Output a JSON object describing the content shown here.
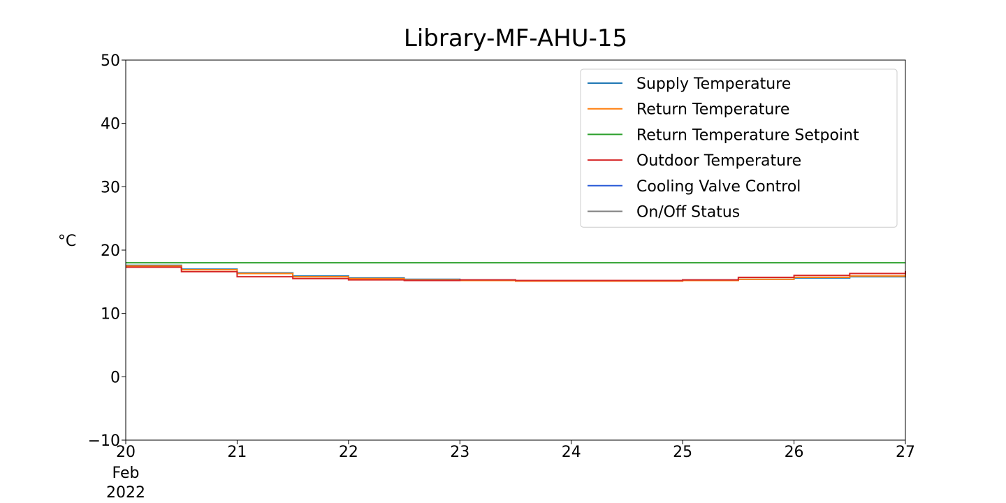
{
  "chart_data": {
    "type": "line",
    "title": "Library-MF-AHU-15",
    "xlabel": "",
    "ylabel": "°C",
    "ylim": [
      -10,
      50
    ],
    "xlim": [
      "2022-02-20",
      "2022-02-27"
    ],
    "x_ticks": [
      {
        "value": "2022-02-20",
        "label": "20"
      },
      {
        "value": "2022-02-21",
        "label": "21"
      },
      {
        "value": "2022-02-22",
        "label": "22"
      },
      {
        "value": "2022-02-23",
        "label": "23"
      },
      {
        "value": "2022-02-24",
        "label": "24"
      },
      {
        "value": "2022-02-25",
        "label": "25"
      },
      {
        "value": "2022-02-26",
        "label": "26"
      },
      {
        "value": "2022-02-27",
        "label": "27"
      }
    ],
    "x_tick_sublabels": [
      "Feb",
      "2022"
    ],
    "y_ticks": [
      50,
      40,
      30,
      20,
      10,
      0,
      -10
    ],
    "y_tick_labels": [
      "50",
      "40",
      "30",
      "20",
      "10",
      "0",
      "−10"
    ],
    "grid": false,
    "legend_position": "top-right",
    "series": [
      {
        "name": "Supply Temperature",
        "color": "#1f77b4",
        "x": [
          "2022-02-20",
          "2022-02-20T12:00",
          "2022-02-21",
          "2022-02-21T12:00",
          "2022-02-22",
          "2022-02-22T12:00",
          "2022-02-23",
          "2022-02-23T12:00",
          "2022-02-24",
          "2022-02-24T12:00",
          "2022-02-25",
          "2022-02-25T12:00",
          "2022-02-26",
          "2022-02-26T12:00",
          "2022-02-27"
        ],
        "values": [
          17.6,
          17.0,
          16.4,
          15.9,
          15.6,
          15.4,
          15.3,
          15.2,
          15.2,
          15.2,
          15.3,
          15.4,
          15.6,
          15.8,
          16.2
        ]
      },
      {
        "name": "Return Temperature",
        "color": "#ff7f0e",
        "x": [
          "2022-02-20",
          "2022-02-20T12:00",
          "2022-02-21",
          "2022-02-21T12:00",
          "2022-02-22",
          "2022-02-22T12:00",
          "2022-02-23",
          "2022-02-23T12:00",
          "2022-02-24",
          "2022-02-24T12:00",
          "2022-02-25",
          "2022-02-25T12:00",
          "2022-02-26",
          "2022-02-26T12:00",
          "2022-02-27"
        ],
        "values": [
          17.5,
          16.9,
          16.3,
          15.8,
          15.5,
          15.3,
          15.2,
          15.1,
          15.1,
          15.1,
          15.2,
          15.4,
          15.7,
          15.9,
          16.4
        ]
      },
      {
        "name": "Return Temperature Setpoint",
        "color": "#2ca02c",
        "x": [
          "2022-02-20",
          "2022-02-27"
        ],
        "values": [
          18.0,
          18.0
        ]
      },
      {
        "name": "Outdoor Temperature",
        "color": "#d62728",
        "x": [
          "2022-02-20",
          "2022-02-20T12:00",
          "2022-02-21",
          "2022-02-21T12:00",
          "2022-02-22",
          "2022-02-22T12:00",
          "2022-02-23",
          "2022-02-23T12:00",
          "2022-02-24",
          "2022-02-24T12:00",
          "2022-02-25",
          "2022-02-25T12:00",
          "2022-02-26",
          "2022-02-26T12:00",
          "2022-02-27"
        ],
        "values": [
          17.3,
          16.6,
          15.8,
          15.5,
          15.3,
          15.2,
          15.3,
          15.2,
          15.2,
          15.2,
          15.3,
          15.7,
          16.0,
          16.3,
          16.7
        ]
      },
      {
        "name": "Cooling Valve Control",
        "color": "#2a5bd7",
        "x": [],
        "values": []
      },
      {
        "name": "On/Off Status",
        "color": "#7f7f7f",
        "x": [],
        "values": []
      }
    ]
  }
}
